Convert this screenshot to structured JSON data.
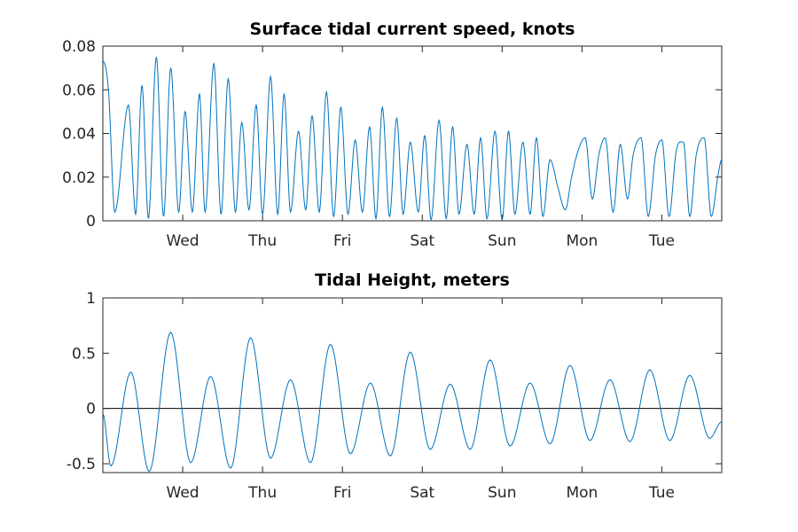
{
  "chart_data": [
    {
      "type": "line",
      "title": "Surface tidal current speed, knots",
      "xlabel": "",
      "ylabel": "",
      "xlim": [
        0,
        7.75
      ],
      "ylim": [
        0,
        0.08
      ],
      "yticks": [
        0,
        0.02,
        0.04,
        0.06,
        0.08
      ],
      "ytick_labels": [
        "0",
        "0.02",
        "0.04",
        "0.06",
        "0.08"
      ],
      "xticks": [
        1,
        2,
        3,
        4,
        5,
        6,
        7
      ],
      "xtick_labels": [
        "Wed",
        "Thu",
        "Fri",
        "Sat",
        "Sun",
        "Mon",
        "Tue"
      ],
      "grid": false,
      "color": "#0072BD",
      "series": [
        {
          "x": [
            0.0,
            0.07,
            0.15,
            0.32,
            0.41,
            0.49,
            0.57,
            0.67,
            0.76,
            0.85,
            0.95,
            1.03,
            1.12,
            1.21,
            1.28,
            1.39,
            1.48,
            1.57,
            1.66,
            1.74,
            1.83,
            1.92,
            2.0,
            2.1,
            2.19,
            2.27,
            2.35,
            2.45,
            2.54,
            2.62,
            2.71,
            2.8,
            2.89,
            2.98,
            3.07,
            3.16,
            3.25,
            3.34,
            3.42,
            3.5,
            3.59,
            3.68,
            3.76,
            3.85,
            3.95,
            4.03,
            4.11,
            4.21,
            4.3,
            4.38,
            4.46,
            4.56,
            4.65,
            4.73,
            4.81,
            4.91,
            5.0,
            5.08,
            5.16,
            5.26,
            5.35,
            5.43,
            5.51,
            5.6,
            5.7,
            5.79,
            5.87,
            5.95,
            6.04,
            6.13,
            6.21,
            6.29,
            6.39,
            6.48,
            6.57,
            6.64,
            6.74,
            6.83,
            6.92,
            7.0,
            7.09,
            7.18,
            7.27,
            7.35,
            7.43,
            7.53,
            7.62,
            7.7,
            7.75
          ],
          "y": [
            0.073,
            0.06,
            0.004,
            0.053,
            0.003,
            0.062,
            0.001,
            0.075,
            0.002,
            0.07,
            0.004,
            0.05,
            0.004,
            0.058,
            0.004,
            0.072,
            0.003,
            0.065,
            0.004,
            0.045,
            0.005,
            0.053,
            0.003,
            0.066,
            0.003,
            0.058,
            0.004,
            0.041,
            0.005,
            0.048,
            0.004,
            0.059,
            0.002,
            0.052,
            0.003,
            0.037,
            0.004,
            0.043,
            0.001,
            0.052,
            0.002,
            0.047,
            0.003,
            0.036,
            0.004,
            0.039,
            0.0005,
            0.046,
            0.001,
            0.043,
            0.003,
            0.035,
            0.003,
            0.038,
            0.001,
            0.041,
            0.0005,
            0.041,
            0.003,
            0.036,
            0.003,
            0.038,
            0.002,
            0.028,
            0.015,
            0.005,
            0.02,
            0.032,
            0.038,
            0.01,
            0.03,
            0.038,
            0.004,
            0.035,
            0.01,
            0.03,
            0.038,
            0.002,
            0.03,
            0.037,
            0.002,
            0.032,
            0.036,
            0.002,
            0.03,
            0.038,
            0.002,
            0.02,
            0.028
          ]
        }
      ]
    },
    {
      "type": "line",
      "title": "Tidal Height, meters",
      "xlabel": "",
      "ylabel": "",
      "xlim": [
        0,
        7.75
      ],
      "ylim": [
        -0.58,
        1
      ],
      "yticks": [
        -0.5,
        0,
        0.5,
        1
      ],
      "ytick_labels": [
        "-0.5",
        "0",
        "0.5",
        "1"
      ],
      "xticks": [
        1,
        2,
        3,
        4,
        5,
        6,
        7
      ],
      "xtick_labels": [
        "Wed",
        "Thu",
        "Fri",
        "Sat",
        "Sun",
        "Mon",
        "Tue"
      ],
      "grid": false,
      "color": "#0072BD",
      "zero_line": true,
      "series": [
        {
          "x": [
            0.0,
            0.1,
            0.35,
            0.58,
            0.85,
            1.1,
            1.35,
            1.6,
            1.85,
            2.1,
            2.35,
            2.6,
            2.85,
            3.1,
            3.35,
            3.6,
            3.85,
            4.1,
            4.35,
            4.6,
            4.85,
            5.1,
            5.35,
            5.6,
            5.85,
            6.1,
            6.35,
            6.6,
            6.85,
            7.1,
            7.35,
            7.6,
            7.75
          ],
          "y": [
            -0.05,
            -0.52,
            0.33,
            -0.57,
            0.69,
            -0.49,
            0.29,
            -0.54,
            0.64,
            -0.45,
            0.26,
            -0.49,
            0.58,
            -0.41,
            0.23,
            -0.43,
            0.51,
            -0.37,
            0.22,
            -0.37,
            0.44,
            -0.34,
            0.23,
            -0.32,
            0.39,
            -0.29,
            0.26,
            -0.3,
            0.35,
            -0.29,
            0.3,
            -0.27,
            -0.12
          ]
        }
      ]
    }
  ]
}
